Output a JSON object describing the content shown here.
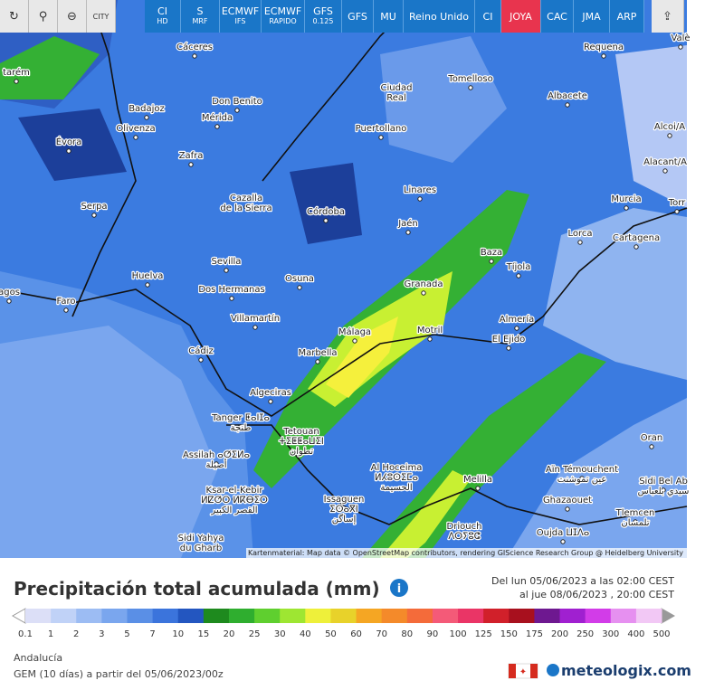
{
  "toolbar": {
    "city_button": "CITY",
    "buttons": [
      {
        "main": "CI",
        "sub": "HD"
      },
      {
        "main": "S",
        "sub": "MRF"
      },
      {
        "main": "ECMWF",
        "sub": "IFS"
      },
      {
        "main": "ECMWF",
        "sub": "RAPIDO"
      },
      {
        "main": "GFS",
        "sub": "0.125"
      },
      {
        "main": "GFS"
      },
      {
        "main": "MU"
      },
      {
        "main": "Reino Unido"
      },
      {
        "main": "CI"
      },
      {
        "main": "JOYA"
      },
      {
        "main": "CAC"
      },
      {
        "main": "JMA"
      },
      {
        "main": "ARP"
      }
    ]
  },
  "map": {
    "places": [
      {
        "lines": [
          "Cáceres"
        ]
      },
      {
        "lines": [
          "Requena"
        ]
      },
      {
        "lines": [
          "Valè"
        ]
      },
      {
        "lines": [
          "tarém"
        ]
      },
      {
        "lines": [
          "Tomelloso"
        ]
      },
      {
        "lines": [
          "Ciudad",
          "Real"
        ]
      },
      {
        "lines": [
          "Don Benito"
        ]
      },
      {
        "lines": [
          "Badajoz"
        ]
      },
      {
        "lines": [
          "Mérida"
        ]
      },
      {
        "lines": [
          "Albacete"
        ]
      },
      {
        "lines": [
          "Olivenza"
        ]
      },
      {
        "lines": [
          "Puertollano"
        ]
      },
      {
        "lines": [
          "Évora"
        ]
      },
      {
        "lines": [
          "Alcoi/A"
        ]
      },
      {
        "lines": [
          "Zafra"
        ]
      },
      {
        "lines": [
          "Alacant/A"
        ]
      },
      {
        "lines": [
          "Linares"
        ]
      },
      {
        "lines": [
          "Murcia"
        ]
      },
      {
        "lines": [
          "Serpa"
        ]
      },
      {
        "lines": [
          "Cazalla",
          "de la Sierra"
        ]
      },
      {
        "lines": [
          "Córdoba"
        ]
      },
      {
        "lines": [
          "Torr"
        ]
      },
      {
        "lines": [
          "Jaén"
        ]
      },
      {
        "lines": [
          "Lorca"
        ]
      },
      {
        "lines": [
          "Cartagena"
        ]
      },
      {
        "lines": [
          "Baza"
        ]
      },
      {
        "lines": [
          "Sevilla"
        ]
      },
      {
        "lines": [
          "Tíjola"
        ]
      },
      {
        "lines": [
          "Huelva"
        ]
      },
      {
        "lines": [
          "Osuna"
        ]
      },
      {
        "lines": [
          "Granada"
        ]
      },
      {
        "lines": [
          "Dos Hermanas"
        ]
      },
      {
        "lines": [
          "agos"
        ]
      },
      {
        "lines": [
          "Faro"
        ]
      },
      {
        "lines": [
          "Villamartín"
        ]
      },
      {
        "lines": [
          "Almería"
        ]
      },
      {
        "lines": [
          "Málaga"
        ]
      },
      {
        "lines": [
          "Motril"
        ]
      },
      {
        "lines": [
          "El Ejido"
        ]
      },
      {
        "lines": [
          "Marbella"
        ]
      },
      {
        "lines": [
          "Cádiz"
        ]
      },
      {
        "lines": [
          "Algeciras"
        ]
      },
      {
        "lines": [
          "Tanger ⵟⴰⵏⵊⴰ",
          "طنجة"
        ]
      },
      {
        "lines": [
          "Tetouan",
          "ⵜⵉⵟⵟⴰⵡⵉⵏ",
          "تطوان"
        ]
      },
      {
        "lines": [
          "Assilah ⴰⵚⵉⵍⴰ",
          "أصيلة"
        ]
      },
      {
        "lines": [
          "Al Hoceima",
          "ⵍⵃⵓⵙⵉⵎⴰ",
          "الحسيمة"
        ]
      },
      {
        "lines": [
          "Melilla"
        ]
      },
      {
        "lines": [
          "Oran"
        ]
      },
      {
        "lines": [
          "Aïn Témouchent",
          "عين تموشنت"
        ]
      },
      {
        "lines": [
          "Sidi Bel Ab",
          "سيدي بلعباس"
        ]
      },
      {
        "lines": [
          "Ghazaouet"
        ]
      },
      {
        "lines": [
          "Tlemcen",
          "تلمسان"
        ]
      },
      {
        "lines": [
          "Ksar-el-Kebir",
          "ⵍⵇⵚⵔ ⵍⴽⴱⵉⵔ",
          "القصر الكبير"
        ]
      },
      {
        "lines": [
          "Issaguen",
          "ⵉⵙⴰⴳⵏ",
          "إساگن"
        ]
      },
      {
        "lines": [
          "Driouch",
          "ⴷⵔⵢⵓⵛ"
        ]
      },
      {
        "lines": [
          "Oujda ⵡⵊⴷⴰ"
        ]
      },
      {
        "lines": [
          "Sidi Yahya",
          "du Gharb"
        ]
      }
    ],
    "attribution": "Kartenmaterial: Map data © OpenStreetMap contributors, rendering GIScience Research Group @ Heidelberg University"
  },
  "legend": {
    "title": "Precipitación total acumulada (mm)",
    "period": [
      "Del lun 05/06/2023 a las 02:00 CEST",
      "al jue 08/06/2023 , 20:00 CEST"
    ],
    "scale": [
      0.1,
      1,
      2,
      3,
      5,
      7,
      10,
      15,
      20,
      25,
      30,
      40,
      50,
      60,
      70,
      80,
      90,
      100,
      125,
      150,
      175,
      200,
      250,
      300,
      400,
      500
    ]
  },
  "footer": {
    "region": "Andalucía",
    "model": "GEM (10 días) a partir del 05/06/2023/00z",
    "brand": "meteologix.com"
  }
}
